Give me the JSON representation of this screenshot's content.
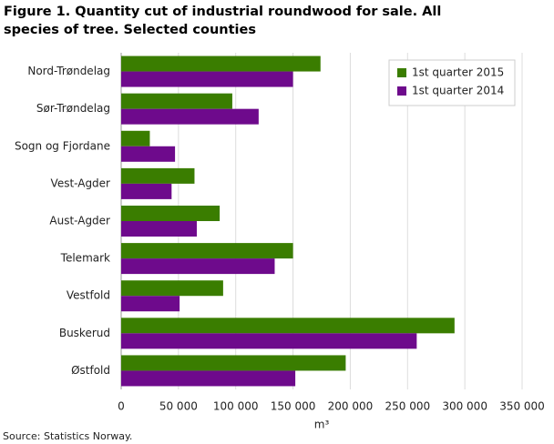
{
  "chart_data": {
    "type": "hbar",
    "title": "Figure 1. Quantity cut of industrial roundwood for sale. All species of tree. Selected counties",
    "x_label": "m³",
    "source": "Source: Statistics Norway.",
    "categories": [
      "Nord-Trøndelag",
      "Sør-Trøndelag",
      "Sogn og Fjordane",
      "Vest-Agder",
      "Aust-Agder",
      "Telemark",
      "Vestfold",
      "Buskerud",
      "Østfold"
    ],
    "series": [
      {
        "name": "1st quarter 2015",
        "color": "#3a7d00",
        "values": [
          174000,
          97000,
          25000,
          64000,
          86000,
          150000,
          89000,
          291000,
          196000
        ]
      },
      {
        "name": "1st quarter 2014",
        "color": "#6e0a8c",
        "values": [
          150000,
          120000,
          47000,
          44000,
          66000,
          134000,
          51000,
          258000,
          152000
        ]
      }
    ],
    "xlim": [
      0,
      350000
    ],
    "xticks": [
      0,
      {
        "value": 50000,
        "label": "50 000"
      },
      {
        "value": 100000,
        "label": "100 000"
      },
      {
        "value": 150000,
        "label": "150 000"
      },
      {
        "value": 200000,
        "label": "200 000"
      },
      {
        "value": 250000,
        "label": "250 000"
      },
      {
        "value": 300000,
        "label": "300 000"
      },
      {
        "value": 350000,
        "label": "350 000"
      }
    ],
    "grid": true,
    "legend": "top-right"
  }
}
